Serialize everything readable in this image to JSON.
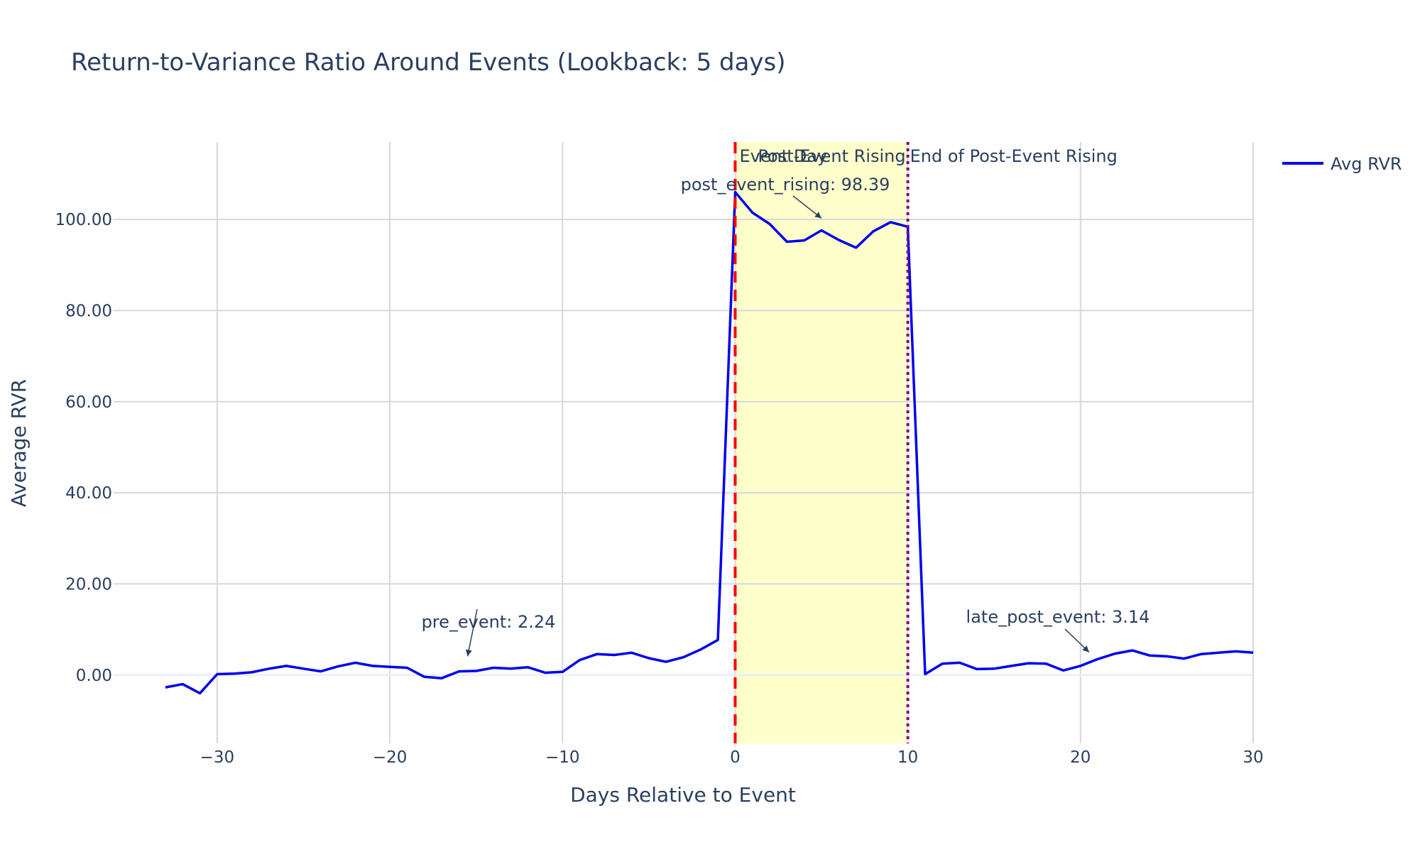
{
  "chart_data": {
    "type": "line",
    "title": "Return-to-Variance Ratio Around Events (Lookback: 5 days)",
    "xlabel": "Days Relative to Event",
    "ylabel": "Average RVR",
    "xlim": [
      -36,
      30
    ],
    "ylim": [
      -15,
      117
    ],
    "x_ticks": [
      -30,
      -20,
      -10,
      0,
      10,
      20,
      30
    ],
    "x_tick_labels": [
      "−30",
      "−20",
      "−10",
      "0",
      "10",
      "20",
      "30"
    ],
    "y_ticks": [
      0,
      20,
      40,
      60,
      80,
      100
    ],
    "y_tick_labels": [
      "0.00",
      "20.00",
      "40.00",
      "60.00",
      "80.00",
      "100.00"
    ],
    "grid": true,
    "legend_position": "top-right",
    "series": [
      {
        "name": "Avg RVR",
        "color": "#0000ee",
        "x": [
          -33,
          -32,
          -31,
          -30,
          -29,
          -28,
          -27,
          -26,
          -25,
          -24,
          -23,
          -22,
          -21,
          -20,
          -19,
          -18,
          -17,
          -16,
          -15,
          -14,
          -13,
          -12,
          -11,
          -10,
          -9,
          -8,
          -7,
          -6,
          -5,
          -4,
          -3,
          -2,
          -1,
          0,
          1,
          2,
          3,
          4,
          5,
          6,
          7,
          8,
          9,
          10,
          11,
          12,
          13,
          14,
          15,
          16,
          17,
          18,
          19,
          20,
          21,
          22,
          23,
          24,
          25,
          26,
          27,
          28,
          29,
          30
        ],
        "values": [
          -2.7,
          -2.0,
          -4.0,
          0.2,
          0.3,
          0.6,
          1.4,
          2.0,
          1.4,
          0.8,
          1.9,
          2.7,
          2.0,
          1.8,
          1.6,
          -0.4,
          -0.7,
          0.8,
          0.9,
          1.6,
          1.4,
          1.7,
          0.5,
          0.7,
          3.3,
          4.6,
          4.4,
          4.9,
          3.7,
          2.9,
          3.9,
          5.6,
          7.7,
          106.0,
          101.5,
          99.0,
          95.1,
          95.4,
          97.6,
          95.5,
          93.8,
          97.4,
          99.4,
          98.4,
          0.2,
          2.5,
          2.7,
          1.3,
          1.4,
          2.0,
          2.6,
          2.5,
          1.0,
          2.0,
          3.5,
          4.7,
          5.4,
          4.3,
          4.1,
          3.6,
          4.6,
          4.9,
          5.2,
          4.9
        ]
      }
    ],
    "shaded_region": {
      "x0": 0,
      "x1": 10,
      "color": "#ffff99"
    },
    "vlines": [
      {
        "x": 0,
        "label": "Event Day",
        "color": "#ff0000",
        "style": "dash"
      },
      {
        "x": 10,
        "label": "End of Post-Event Rising",
        "color": "#800080",
        "style": "dot"
      }
    ],
    "region_label": "Post-Event Rising",
    "annotations": [
      {
        "text": "pre_event: 2.24",
        "x": -15.5,
        "y": 2.24
      },
      {
        "text": "post_event_rising: 98.39",
        "x": 5,
        "y": 98.39
      },
      {
        "text": "late_post_event: 3.14",
        "x": 20.5,
        "y": 3.14
      }
    ]
  }
}
